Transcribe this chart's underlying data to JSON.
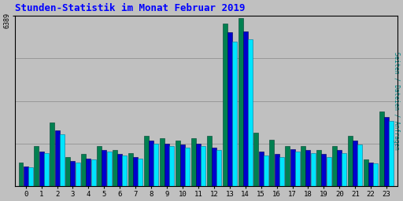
{
  "title": "Stunden-Statistik im Monat Februar 2019",
  "ylabel_right": "Seiten / Dateien / Anfragen",
  "ytick_label": "6389",
  "hours": [
    0,
    1,
    2,
    3,
    4,
    5,
    6,
    7,
    8,
    9,
    10,
    11,
    12,
    13,
    14,
    15,
    16,
    17,
    18,
    19,
    20,
    21,
    22,
    23
  ],
  "ymax": 6389,
  "background_color": "#c0c0c0",
  "plot_bg": "#c0c0c0",
  "bar_colors": [
    "#008050",
    "#0000cc",
    "#00e5ff"
  ],
  "bar_edge": "#000000",
  "seiten": [
    900,
    1500,
    2400,
    1100,
    1200,
    1500,
    1350,
    1250,
    1900,
    1800,
    1700,
    1800,
    1900,
    6100,
    6300,
    2000,
    1750,
    1500,
    1500,
    1350,
    1500,
    1900,
    1000,
    2800
  ],
  "dateien": [
    750,
    1300,
    2100,
    950,
    1050,
    1350,
    1200,
    1100,
    1700,
    1600,
    1550,
    1600,
    1450,
    5750,
    5800,
    1300,
    1200,
    1400,
    1350,
    1200,
    1350,
    1700,
    900,
    2600
  ],
  "anfragen": [
    700,
    1250,
    1950,
    900,
    1000,
    1300,
    1150,
    1050,
    1600,
    1500,
    1450,
    1500,
    1350,
    5400,
    5500,
    1150,
    1100,
    1300,
    1250,
    1100,
    1250,
    1550,
    850,
    2450
  ]
}
